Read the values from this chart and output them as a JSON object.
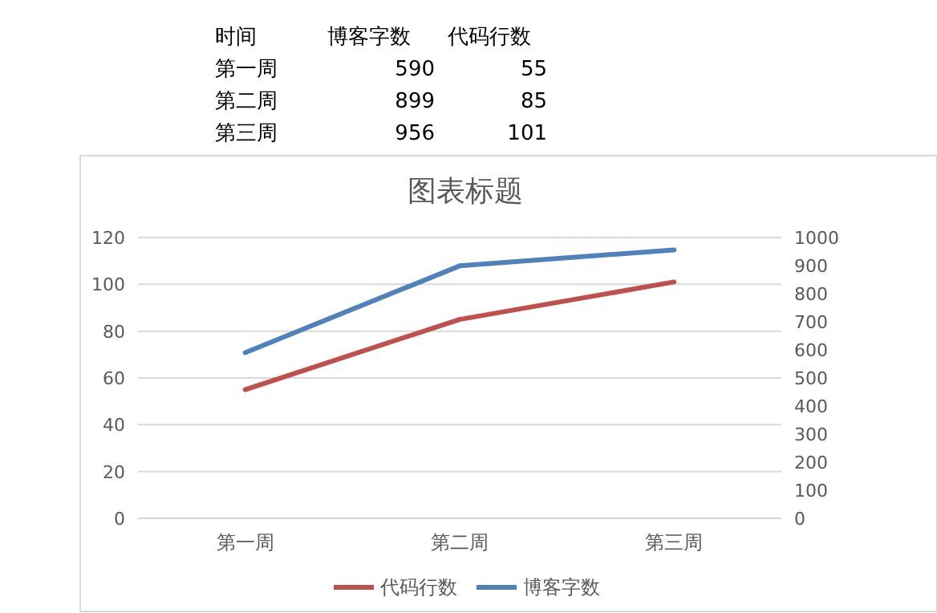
{
  "chart_data": {
    "type": "line",
    "title": "图表标题",
    "categories": [
      "第一周",
      "第二周",
      "第三周"
    ],
    "series": [
      {
        "name": "博客字数",
        "color": "#4f81bd",
        "values": [
          590,
          899,
          956
        ],
        "axis": "y2"
      },
      {
        "name": "代码行数",
        "color": "#c0504d",
        "values": [
          55,
          85,
          101
        ]
      }
    ],
    "ylim": [
      0,
      120
    ],
    "yticks": [
      0,
      20,
      40,
      60,
      80,
      100,
      120
    ],
    "y2lim": [
      0,
      1000
    ],
    "y2ticks": [
      0,
      100,
      200,
      300,
      400,
      500,
      600,
      700,
      800,
      900,
      1000
    ],
    "grid": "y",
    "legend": "bottom",
    "annotations": [
      "时间",
      "博客字数",
      "代码行数",
      "第一周",
      "590",
      "55",
      "第二周",
      "899",
      "85",
      "第三周",
      "956",
      "101"
    ]
  }
}
